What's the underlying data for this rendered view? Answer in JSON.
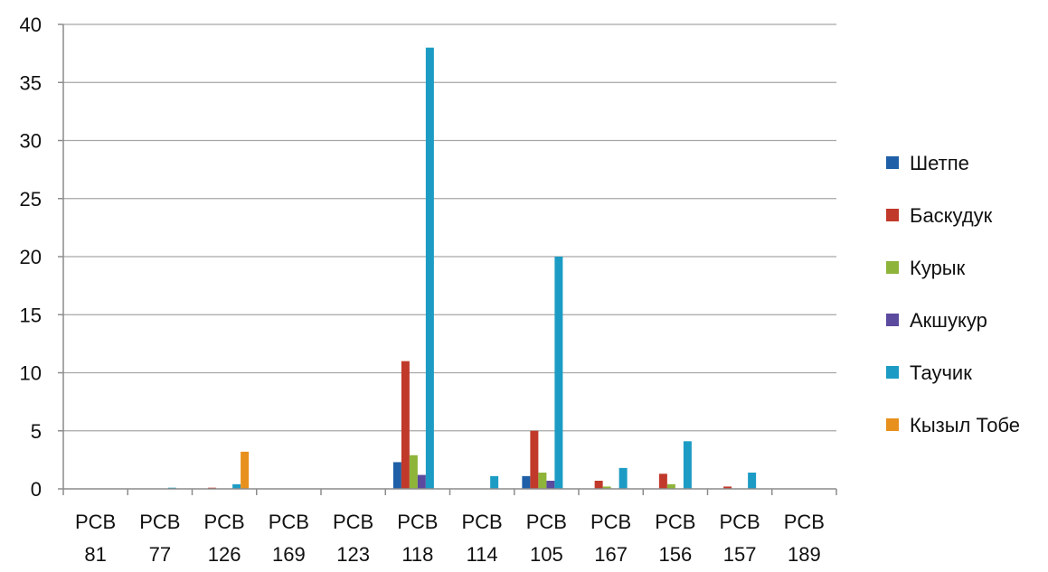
{
  "chart_data": {
    "type": "bar",
    "title": "",
    "xlabel": "",
    "ylabel": "",
    "ylim": [
      0,
      40
    ],
    "yticks": [
      0,
      5,
      10,
      15,
      20,
      25,
      30,
      35,
      40
    ],
    "grid": true,
    "legend_position": "right",
    "categories": [
      [
        "PCB",
        "81"
      ],
      [
        "PCB",
        "77"
      ],
      [
        "PCB",
        "126"
      ],
      [
        "PCB",
        "169"
      ],
      [
        "PCB",
        "123"
      ],
      [
        "PCB",
        "118"
      ],
      [
        "PCB",
        "114"
      ],
      [
        "PCB",
        "105"
      ],
      [
        "PCB",
        "167"
      ],
      [
        "PCB",
        "156"
      ],
      [
        "PCB",
        "157"
      ],
      [
        "PCB",
        "189"
      ]
    ],
    "series": [
      {
        "name": "Шетпе",
        "color": "#1f5fa8",
        "values": [
          0,
          0,
          0,
          0,
          0,
          2.3,
          0,
          1.1,
          0,
          0,
          0,
          0
        ]
      },
      {
        "name": "Баскудук",
        "color": "#c0392b",
        "values": [
          0,
          0,
          0.1,
          0,
          0,
          11,
          0,
          5,
          0.7,
          1.3,
          0.2,
          0
        ]
      },
      {
        "name": "Курык",
        "color": "#8fb43a",
        "values": [
          0,
          0,
          0,
          0,
          0,
          2.9,
          0,
          1.4,
          0.2,
          0.4,
          0,
          0
        ]
      },
      {
        "name": "Акшукур",
        "color": "#5b4a9e",
        "values": [
          0,
          0,
          0,
          0,
          0,
          1.2,
          0,
          0.7,
          0,
          0,
          0,
          0
        ]
      },
      {
        "name": "Таучик",
        "color": "#1c9cc4",
        "values": [
          0,
          0.1,
          0.4,
          0,
          0,
          38,
          1.1,
          20,
          1.8,
          4.1,
          1.4,
          0
        ]
      },
      {
        "name": "Кызыл Тобе",
        "color": "#e8901e",
        "values": [
          0,
          0,
          3.2,
          0,
          0,
          0,
          0,
          0,
          0,
          0,
          0,
          0
        ]
      }
    ]
  }
}
